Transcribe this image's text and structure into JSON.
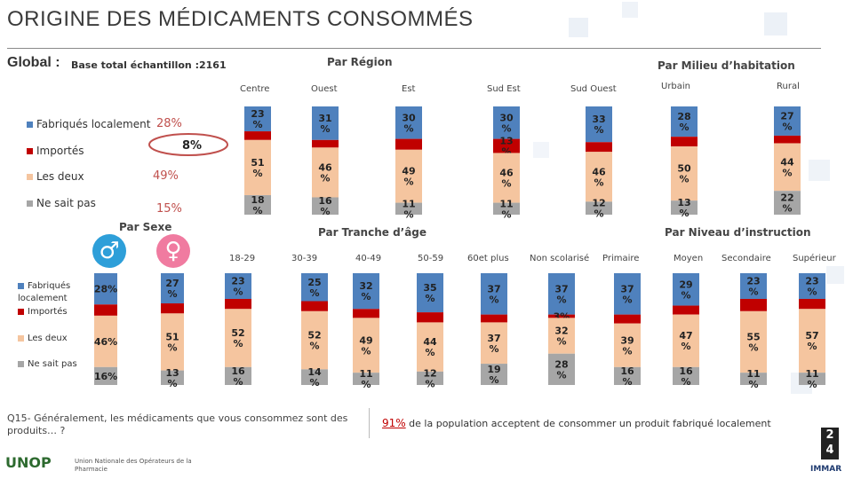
{
  "header": {
    "title": "ORIGINE DES MÉDICAMENTS CONSOMMÉS",
    "global_label": "Global :",
    "base_label": "Base total échantillon :2161"
  },
  "legend": {
    "items": [
      "Fabriqués localement",
      "Importés",
      "Les deux",
      "Ne sait pas"
    ],
    "items_small": [
      "Fabriqués localement",
      "Importés",
      "Les deux",
      "Ne sait pas"
    ]
  },
  "global_values": {
    "fabriques": "28%",
    "importes": "8%",
    "deux": "49%",
    "nsp": "15%"
  },
  "sections": {
    "region": "Par Région",
    "milieu": "Par Milieu d’habitation",
    "sexe": "Par Sexe",
    "age": "Par Tranche d’âge",
    "niveau": "Par Niveau d’instruction"
  },
  "colors": {
    "fabriques": "#4f81bd",
    "importes": "#c00000",
    "deux": "#f5c59f",
    "nsp": "#a6a6a6",
    "male_icon": "#2e9fd9",
    "female_icon": "#f07ba0",
    "highlight": "#c0504d"
  },
  "sex_symbols": {
    "male": "♂",
    "female": "♀"
  },
  "chart_data": [
    {
      "type": "bar",
      "stacked": true,
      "name": "Par Région",
      "categories": [
        "Centre",
        "Ouest",
        "Est",
        "Sud Est",
        "Sud Ouest"
      ],
      "series": [
        {
          "name": "Fabriqués localement",
          "values": [
            23,
            31,
            30,
            30,
            33
          ]
        },
        {
          "name": "Importés",
          "values": [
            8,
            7,
            10,
            13,
            9
          ]
        },
        {
          "name": "Les deux",
          "values": [
            51,
            46,
            49,
            46,
            46
          ]
        },
        {
          "name": "Ne sait pas",
          "values": [
            18,
            16,
            11,
            11,
            12
          ]
        }
      ],
      "labels": [
        [
          "23\n%",
          "",
          "51\n%",
          "18\n%"
        ],
        [
          "31\n%",
          "",
          "46\n%",
          "16\n%"
        ],
        [
          "30\n%",
          "",
          "49\n%",
          "11\n%"
        ],
        [
          "30\n%",
          "13\n%",
          "46\n%",
          "11\n%"
        ],
        [
          "33\n%",
          "",
          "46\n%",
          "12\n%"
        ]
      ]
    },
    {
      "type": "bar",
      "stacked": true,
      "name": "Par Milieu d’habitation",
      "categories": [
        "Urbain",
        "Rural"
      ],
      "series": [
        {
          "name": "Fabriqués localement",
          "values": [
            28,
            27
          ]
        },
        {
          "name": "Importés",
          "values": [
            9,
            7
          ]
        },
        {
          "name": "Les deux",
          "values": [
            50,
            44
          ]
        },
        {
          "name": "Ne sait pas",
          "values": [
            13,
            22
          ]
        }
      ],
      "labels": [
        [
          "28\n%",
          "",
          "50\n%",
          "13\n%"
        ],
        [
          "27\n%",
          "",
          "44\n%",
          "22\n%"
        ]
      ]
    },
    {
      "type": "bar",
      "stacked": true,
      "name": "Par Sexe",
      "categories": [
        "Homme",
        "Femme"
      ],
      "series": [
        {
          "name": "Fabriqués localement",
          "values": [
            28,
            27
          ]
        },
        {
          "name": "Importés",
          "values": [
            10,
            9
          ]
        },
        {
          "name": "Les deux",
          "values": [
            46,
            51
          ]
        },
        {
          "name": "Ne sait pas",
          "values": [
            16,
            13
          ]
        }
      ],
      "labels": [
        [
          "28%",
          "",
          "46%",
          "16%"
        ],
        [
          "27\n%",
          "",
          "51\n%",
          "13\n%"
        ]
      ]
    },
    {
      "type": "bar",
      "stacked": true,
      "name": "Par Tranche d’âge",
      "categories": [
        "18-29",
        "30-39",
        "40-49",
        "50-59",
        "60et plus"
      ],
      "series": [
        {
          "name": "Fabriqués localement",
          "values": [
            23,
            25,
            32,
            35,
            37
          ]
        },
        {
          "name": "Importés",
          "values": [
            9,
            9,
            8,
            9,
            7
          ]
        },
        {
          "name": "Les deux",
          "values": [
            52,
            52,
            49,
            44,
            37
          ]
        },
        {
          "name": "Ne sait pas",
          "values": [
            16,
            14,
            11,
            12,
            19
          ]
        }
      ],
      "labels": [
        [
          "23\n%",
          "",
          "52\n%",
          "16\n%"
        ],
        [
          "25\n%",
          "",
          "52\n%",
          "14\n%"
        ],
        [
          "32\n%",
          "",
          "49\n%",
          "11\n%"
        ],
        [
          "35\n%",
          "",
          "44\n%",
          "12\n%"
        ],
        [
          "37\n%",
          "",
          "37\n%",
          "19\n%"
        ]
      ]
    },
    {
      "type": "bar",
      "stacked": true,
      "name": "Par Niveau d’instruction",
      "categories": [
        "Non scolarisé",
        "Primaire",
        "Moyen",
        "Secondaire",
        "Supérieur"
      ],
      "series": [
        {
          "name": "Fabriqués localement",
          "values": [
            37,
            37,
            29,
            23,
            23
          ]
        },
        {
          "name": "Importés",
          "values": [
            3,
            8,
            8,
            11,
            9
          ]
        },
        {
          "name": "Les deux",
          "values": [
            32,
            39,
            47,
            55,
            57
          ]
        },
        {
          "name": "Ne sait pas",
          "values": [
            28,
            16,
            16,
            11,
            11
          ]
        }
      ],
      "labels": [
        [
          "37\n%",
          "3%",
          "32\n%",
          "28\n%"
        ],
        [
          "37\n%",
          "",
          "39\n%",
          "16\n%"
        ],
        [
          "29\n%",
          "",
          "47\n%",
          "16\n%"
        ],
        [
          "23\n%",
          "",
          "55\n%",
          "11\n%"
        ],
        [
          "23\n%",
          "",
          "57\n%",
          "11\n%"
        ]
      ]
    }
  ],
  "question": "Q15- Généralement, les médicaments que vous consommez sont des produits… ?",
  "footnote": {
    "pct": "91%",
    "text": "de la population acceptent de consommer un produit fabriqué localement"
  },
  "page_number": {
    "top": "2",
    "bottom": "4"
  },
  "logo": {
    "name": "UNOP",
    "subtitle": "Union Nationale des Opérateurs de la Pharmacie"
  },
  "immar": "IMMAR"
}
